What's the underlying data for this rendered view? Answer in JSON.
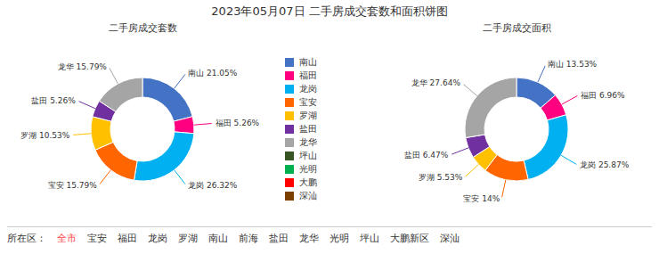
{
  "title": "2023年05月07日 二手房成交套数和面积饼图",
  "annotations": [
    {
      "text": "所在区："
    },
    {
      "text": "全市",
      "color": "#ff4444"
    },
    {
      "text": "宝安"
    },
    {
      "text": "福田"
    },
    {
      "text": "龙岗"
    },
    {
      "text": "罗湖"
    },
    {
      "text": "南山"
    },
    {
      "text": "前海"
    },
    {
      "text": "盐田"
    },
    {
      "text": "龙华"
    },
    {
      "text": "光明"
    },
    {
      "text": "坪山"
    },
    {
      "text": "大鹏新区"
    },
    {
      "text": "深汕"
    }
  ],
  "chart_data": [
    {
      "type": "pie",
      "title": "二手房成交套数",
      "categories": [
        "南山",
        "福田",
        "龙岗",
        "宝安",
        "罗湖",
        "盐田",
        "龙华",
        "坪山",
        "光明",
        "大鹏",
        "深汕"
      ],
      "values": [
        21.05,
        5.26,
        26.32,
        15.79,
        10.53,
        5.26,
        15.79,
        0,
        0,
        0,
        0
      ],
      "value_labels": [
        "南山 21.05%",
        "福田 5.26%",
        "龙岗 26.32%",
        "宝安 15.79%",
        "罗湖 10.53%",
        "盐田 5.26%",
        "龙华 15.79%",
        null,
        null,
        null,
        null
      ],
      "colors": [
        "#4472c4",
        "#ff0080",
        "#00b0f0",
        "#ff6600",
        "#ffc000",
        "#7030a0",
        "#a5a5a5",
        "#375623",
        "#00b050",
        "#ff0000",
        "#7b3f00"
      ],
      "data_labels": true,
      "legend": "right"
    },
    {
      "type": "pie",
      "title": "二手房成交面积",
      "categories": [
        "南山",
        "福田",
        "龙岗",
        "宝安",
        "罗湖",
        "盐田",
        "龙华",
        "坪山",
        "光明",
        "大鹏",
        "深汕"
      ],
      "values": [
        13.53,
        6.96,
        25.87,
        14.0,
        5.53,
        6.47,
        27.64,
        0,
        0,
        0,
        0
      ],
      "value_labels": [
        "南山 13.53%",
        "福田 6.96%",
        "龙岗 25.87%",
        "宝安 14%",
        "罗湖 5.53%",
        "盐田 6.47%",
        "龙华 27.64%",
        null,
        null,
        null,
        null
      ],
      "colors": [
        "#4472c4",
        "#ff0080",
        "#00b0f0",
        "#ff6600",
        "#ffc000",
        "#7030a0",
        "#a5a5a5",
        "#375623",
        "#00b050",
        "#ff0000",
        "#7b3f00"
      ],
      "data_labels": true
    }
  ]
}
